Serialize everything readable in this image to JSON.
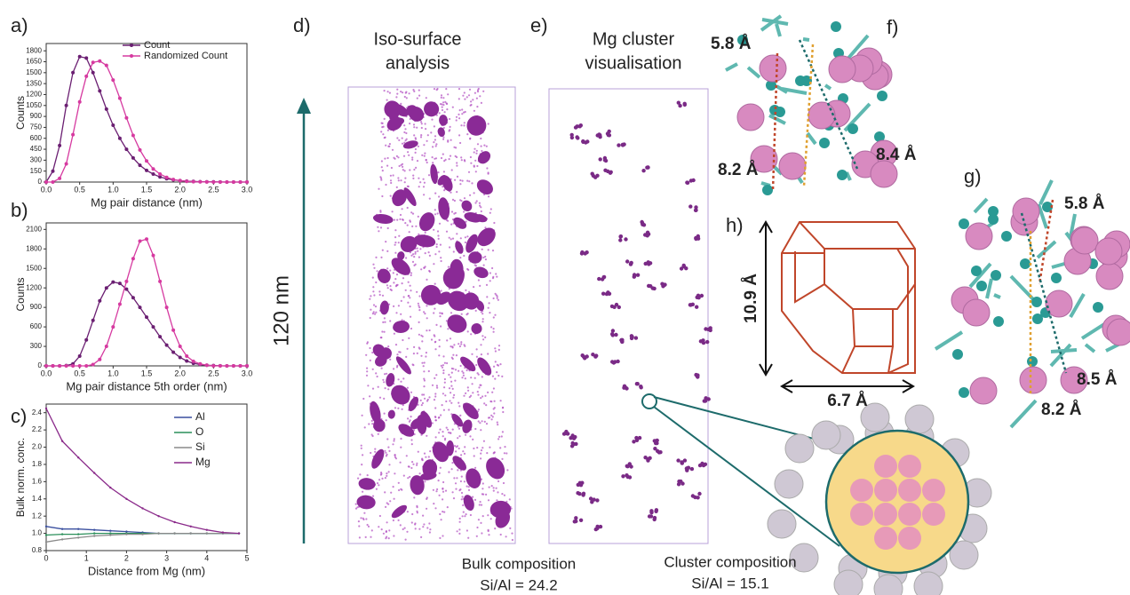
{
  "figure": {
    "panel_labels": [
      "a)",
      "b)",
      "c)",
      "d)",
      "e)",
      "f)",
      "g)",
      "h)"
    ],
    "iso_title": [
      "Iso-surface",
      "analysis"
    ],
    "cluster_title": [
      "Mg cluster",
      "visualisation"
    ],
    "scale": "120 nm",
    "bulk": [
      "Bulk composition",
      "Si/Al = 24.2"
    ],
    "cluster": [
      "Cluster composition",
      "Si/Al = 15.1"
    ],
    "f_distances": [
      "5.8 Å",
      "8.4 Å",
      "8.2 Å"
    ],
    "g_distances": [
      "5.8 Å",
      "8.5 Å",
      "8.2 Å"
    ],
    "h_dimensions": [
      "10.9 Å",
      "6.7 Å"
    ]
  },
  "chart_data": [
    {
      "type": "line",
      "xlabel": "Mg pair distance (nm)",
      "ylabel": "Counts",
      "x": [
        0,
        0.1,
        0.2,
        0.3,
        0.4,
        0.5,
        0.6,
        0.7,
        0.8,
        0.9,
        1,
        1.1,
        1.2,
        1.3,
        1.4,
        1.5,
        1.6,
        1.7,
        1.8,
        1.9,
        2,
        2.1,
        2.2,
        2.3,
        2.4,
        2.5,
        2.6,
        2.7,
        2.8,
        2.9,
        3
      ],
      "series": [
        {
          "name": "Count",
          "color": "#6b1f72",
          "values": [
            0,
            150,
            500,
            1050,
            1500,
            1720,
            1700,
            1500,
            1250,
            1000,
            780,
            600,
            450,
            330,
            230,
            160,
            110,
            70,
            45,
            30,
            20,
            12,
            8,
            5,
            3,
            2,
            1,
            0,
            0,
            0,
            0
          ]
        },
        {
          "name": "Randomized Count",
          "color": "#d63aa0",
          "values": [
            0,
            0,
            50,
            250,
            650,
            1100,
            1450,
            1640,
            1660,
            1600,
            1400,
            1150,
            880,
            640,
            440,
            290,
            180,
            110,
            65,
            35,
            20,
            10,
            5,
            3,
            1,
            0,
            0,
            0,
            0,
            0,
            0
          ]
        }
      ],
      "xlim": [
        0,
        3
      ],
      "xticks": [
        {
          "value": 0,
          "label": "0.0"
        },
        0.5,
        {
          "value": 1,
          "label": "1.0"
        },
        1.5,
        {
          "value": 2,
          "label": "2.0"
        },
        2.5,
        {
          "value": 3,
          "label": "3.0"
        }
      ],
      "ylim": [
        0,
        1900
      ],
      "yticks": [
        0,
        150,
        300,
        450,
        600,
        750,
        900,
        1050,
        1200,
        1350,
        1500,
        1650,
        1800
      ],
      "legend": "top-right"
    },
    {
      "type": "line",
      "xlabel": "Mg pair distance 5th order (nm)",
      "ylabel": "Counts",
      "x": [
        0,
        0.1,
        0.2,
        0.3,
        0.4,
        0.5,
        0.6,
        0.7,
        0.8,
        0.9,
        1,
        1.1,
        1.2,
        1.3,
        1.4,
        1.5,
        1.6,
        1.7,
        1.8,
        1.9,
        2,
        2.1,
        2.2,
        2.3,
        2.4,
        2.5,
        2.6,
        2.7,
        2.8,
        2.9,
        3
      ],
      "series": [
        {
          "color": "#6b1f72",
          "values": [
            0,
            0,
            0,
            5,
            30,
            150,
            400,
            700,
            1000,
            1200,
            1290,
            1270,
            1180,
            1050,
            900,
            750,
            600,
            450,
            320,
            210,
            130,
            75,
            40,
            20,
            10,
            5,
            2,
            0,
            0,
            0,
            0
          ]
        },
        {
          "color": "#d63aa0",
          "values": [
            0,
            0,
            0,
            0,
            0,
            0,
            0,
            20,
            100,
            300,
            600,
            950,
            1300,
            1650,
            1920,
            1950,
            1700,
            1300,
            900,
            550,
            300,
            150,
            70,
            30,
            10,
            0,
            0,
            0,
            0,
            0,
            0
          ]
        }
      ],
      "xlim": [
        0,
        3
      ],
      "xticks": [
        {
          "value": 0,
          "label": "0.0"
        },
        0.5,
        {
          "value": 1,
          "label": "1.0"
        },
        1.5,
        {
          "value": 2,
          "label": "2.0"
        },
        2.5,
        {
          "value": 3,
          "label": "3.0"
        }
      ],
      "ylim": [
        0,
        2200
      ],
      "yticks": [
        0,
        300,
        600,
        900,
        1200,
        1500,
        1800,
        2100
      ]
    },
    {
      "type": "line",
      "xlabel": "Distance from Mg (nm)",
      "ylabel": "Bulk norm. conc.",
      "x": [
        0,
        0.4,
        0.8,
        1.2,
        1.6,
        2,
        2.4,
        2.8,
        3.2,
        3.6,
        4,
        4.4,
        4.8
      ],
      "series": [
        {
          "name": "Al",
          "color": "#3a4f9f",
          "values": [
            1.08,
            1.05,
            1.05,
            1.04,
            1.03,
            1.02,
            1.01,
            1,
            1,
            1,
            1,
            1,
            1
          ]
        },
        {
          "name": "O",
          "color": "#2a8f5a",
          "values": [
            0.98,
            0.99,
            0.99,
            1,
            1,
            1,
            1,
            1,
            1,
            1,
            1,
            1,
            1
          ]
        },
        {
          "name": "Si",
          "color": "#8a8a8a",
          "values": [
            0.9,
            0.93,
            0.95,
            0.97,
            0.98,
            0.99,
            0.99,
            1,
            1,
            1,
            1,
            1,
            1
          ]
        },
        {
          "name": "Mg",
          "color": "#8a2a8a",
          "values": [
            2.45,
            2.07,
            1.88,
            1.7,
            1.53,
            1.4,
            1.29,
            1.2,
            1.13,
            1.08,
            1.04,
            1.01,
            1
          ]
        }
      ],
      "xlim": [
        0,
        5
      ],
      "xticks": [
        0,
        1,
        2,
        3,
        4,
        5
      ],
      "ylim": [
        0.8,
        2.5
      ],
      "yticks": [
        0.8,
        {
          "value": 1,
          "label": "1.0"
        },
        1.2,
        1.4,
        1.6,
        1.8,
        {
          "value": 2,
          "label": "2.0"
        },
        2.2,
        2.4
      ],
      "legend": "top-right"
    }
  ]
}
